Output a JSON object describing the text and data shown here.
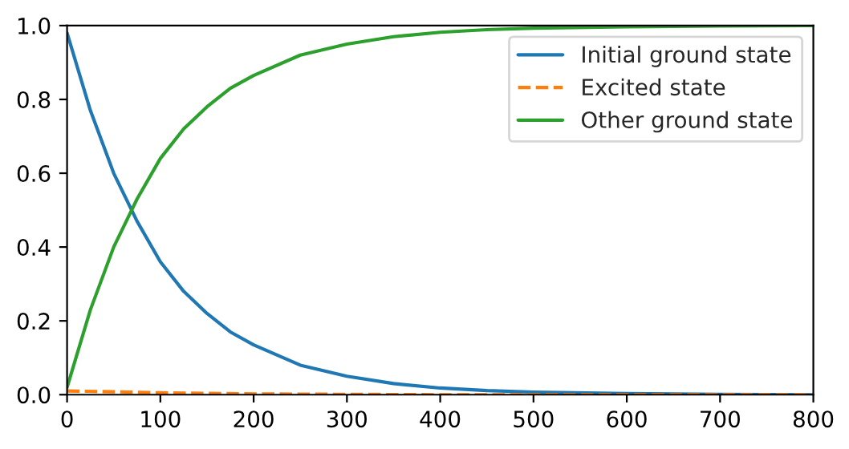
{
  "chart_data": {
    "type": "line",
    "xlim": [
      0,
      800
    ],
    "ylim": [
      0,
      1
    ],
    "xticks": [
      0,
      100,
      200,
      300,
      400,
      500,
      600,
      700,
      800
    ],
    "yticks": [
      {
        "value": 0,
        "label": "0.0"
      },
      0.2,
      0.4,
      0.6,
      0.8,
      {
        "value": 1,
        "label": "1.0"
      }
    ],
    "grid": false,
    "legend": "top right",
    "series": [
      {
        "name": "Initial ground state",
        "color": "#1f77b4",
        "line_style": "solid",
        "x": [
          0,
          25,
          50,
          75,
          100,
          125,
          150,
          175,
          200,
          250,
          300,
          350,
          400,
          450,
          500,
          600,
          700,
          800
        ],
        "values": [
          0.98,
          0.77,
          0.6,
          0.47,
          0.36,
          0.28,
          0.22,
          0.17,
          0.135,
          0.08,
          0.05,
          0.03,
          0.018,
          0.011,
          0.007,
          0.003,
          0.001,
          0.0
        ]
      },
      {
        "name": "Excited state",
        "color": "#ff7f0e",
        "line_style": "dashed",
        "x": [
          0,
          50,
          100,
          200,
          300,
          400,
          800
        ],
        "values": [
          0.01,
          0.008,
          0.005,
          0.002,
          0.001,
          0.0,
          0.0
        ]
      },
      {
        "name": "Other ground state",
        "color": "#2ca02c",
        "line_style": "solid",
        "x": [
          0,
          25,
          50,
          75,
          100,
          125,
          150,
          175,
          200,
          250,
          300,
          350,
          400,
          450,
          500,
          600,
          700,
          800
        ],
        "values": [
          0.02,
          0.23,
          0.4,
          0.53,
          0.64,
          0.72,
          0.78,
          0.83,
          0.865,
          0.92,
          0.95,
          0.97,
          0.982,
          0.989,
          0.993,
          0.997,
          0.999,
          1.0
        ]
      }
    ]
  }
}
